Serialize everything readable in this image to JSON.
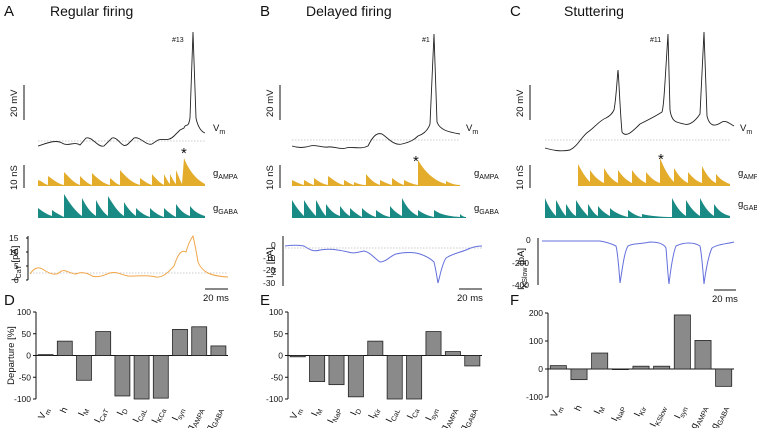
{
  "colors": {
    "ampa": "#e3ac2b",
    "gaba": "#1a8a84",
    "ica": "#f0a64a",
    "ikir": "#6470dc",
    "bars": "#8a8a8a"
  },
  "panels": {
    "A": {
      "letter": "A",
      "title": "Regular firing",
      "spike_label": "#13",
      "star": "*",
      "vm_scale": "20 mV",
      "vm_label": "Vm",
      "g_scale": "10 nS",
      "ampa_label": "gAMPA",
      "gaba_label": "gGABA",
      "current_label": "ICaT [pA]",
      "time_scale": "20 ms",
      "ticks": [
        "15",
        "10",
        "5",
        "0"
      ]
    },
    "B": {
      "letter": "B",
      "title": "Delayed firing",
      "spike_label": "#1",
      "star": "*",
      "vm_scale": "20 mV",
      "vm_label": "Vm",
      "g_scale": "10 nS",
      "ampa_label": "gAMPA",
      "gaba_label": "gGABA",
      "current_label": "IKir [pA]",
      "time_scale": "20 ms",
      "ticks": [
        "0",
        "-10",
        "-20",
        "-30"
      ]
    },
    "C": {
      "letter": "C",
      "title": "Stuttering",
      "spike_label": "#11",
      "star": "*",
      "vm_scale": "20 mV",
      "vm_label": "Vm",
      "g_scale": "10 nS",
      "ampa_label": "gAMPA",
      "gaba_label": "gGABA",
      "current_label": "IKSlow [pA]",
      "time_scale": "20 ms",
      "ticks": [
        "0",
        "-200",
        "-400"
      ]
    }
  },
  "chart_data": [
    {
      "type": "bar",
      "panel": "D",
      "ylabel": "Departure [%]",
      "ylim": [
        -100,
        100
      ],
      "yticks": [
        "100",
        "50",
        "0",
        "-50",
        "-100"
      ],
      "categories": [
        "Vm",
        "h",
        "IM",
        "ICaT",
        "ID",
        "ICaL",
        "IKCa",
        "Isyn",
        "gAMPA",
        "gGABA"
      ],
      "values": [
        2,
        33,
        -57,
        55,
        -93,
        -100,
        -98,
        60,
        66,
        22
      ]
    },
    {
      "type": "bar",
      "panel": "E",
      "ylabel": "",
      "ylim": [
        -100,
        100
      ],
      "yticks": [
        "100",
        "50",
        "0",
        "-50",
        "-100"
      ],
      "categories": [
        "Vm",
        "IM",
        "INaP",
        "ID",
        "IKir",
        "ICaL",
        "ICa",
        "Isyn",
        "gAMPA",
        "gGABA"
      ],
      "values": [
        -3,
        -60,
        -67,
        -95,
        33,
        -100,
        -100,
        55,
        9,
        -24
      ]
    },
    {
      "type": "bar",
      "panel": "F",
      "ylabel": "",
      "ylim": [
        -100,
        200
      ],
      "yticks": [
        "200",
        "100",
        "0",
        "-100"
      ],
      "categories": [
        "Vm",
        "h",
        "IM",
        "INaP",
        "IKir",
        "IKSlow",
        "Isyn",
        "gAMPA",
        "gGABA"
      ],
      "values": [
        12,
        -38,
        57,
        0,
        10,
        10,
        193,
        102,
        -62
      ]
    }
  ]
}
